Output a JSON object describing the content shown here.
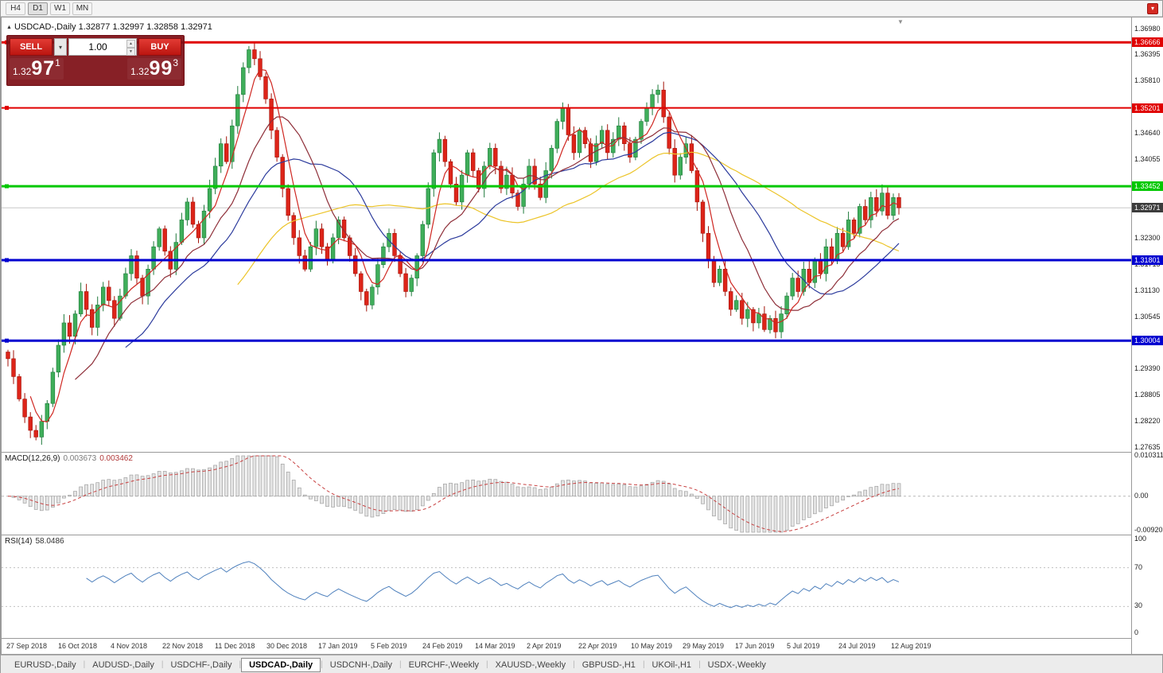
{
  "toolbar": {
    "timeframes": [
      "H4",
      "D1",
      "W1",
      "MN"
    ],
    "active_timeframe": "D1"
  },
  "chart": {
    "symbol": "USDCAD-,Daily",
    "ohlc_text": "1.32877 1.32997 1.32858 1.32971"
  },
  "trade_widget": {
    "sell_label": "SELL",
    "buy_label": "BUY",
    "volume": "1.00",
    "sell_price": {
      "prefix": "1.32",
      "big": "97",
      "sup": "1"
    },
    "buy_price": {
      "prefix": "1.32",
      "big": "99",
      "sup": "3"
    }
  },
  "tabs": {
    "items": [
      "EURUSD-,Daily",
      "AUDUSD-,Daily",
      "USDCHF-,Daily",
      "USDCAD-,Daily",
      "USDCNH-,Daily",
      "EURCHF-,Weekly",
      "XAUUSD-,Weekly",
      "GBPUSD-,H1",
      "UKOil-,H1",
      "USDX-,Weekly"
    ],
    "active_index": 3
  },
  "chart_data": {
    "type": "candlestick",
    "title": "USDCAD-,Daily",
    "price_range": [
      1.2752,
      1.3722
    ],
    "current_price": "1.32971",
    "y_ticks": [
      "1.36980",
      "1.36395",
      "1.35810",
      "1.34640",
      "1.34055",
      "1.32300",
      "1.31715",
      "1.31130",
      "1.30545",
      "1.29390",
      "1.28805",
      "1.28220",
      "1.27635"
    ],
    "hlines": [
      {
        "value": 1.36666,
        "label": "1.36666",
        "color": "#e00000",
        "width": 3
      },
      {
        "value": 1.35201,
        "label": "1.35201",
        "color": "#e00000",
        "width": 2
      },
      {
        "value": 1.33452,
        "label": "1.33452",
        "color": "#00c800",
        "width": 3
      },
      {
        "value": 1.31801,
        "label": "1.31801",
        "color": "#0000d0",
        "width": 3
      },
      {
        "value": 1.30004,
        "label": "1.30004",
        "color": "#0000d0",
        "width": 3
      }
    ],
    "x_labels": [
      "27 Sep 2018",
      "16 Oct 2018",
      "4 Nov 2018",
      "22 Nov 2018",
      "11 Dec 2018",
      "30 Dec 2018",
      "17 Jan 2019",
      "5 Feb 2019",
      "24 Feb 2019",
      "14 Mar 2019",
      "2 Apr 2019",
      "22 Apr 2019",
      "10 May 2019",
      "29 May 2019",
      "17 Jun 2019",
      "5 Jul 2019",
      "24 Jul 2019",
      "12 Aug 2019"
    ],
    "closes": [
      1.296,
      1.292,
      1.287,
      1.283,
      1.28,
      1.2785,
      1.282,
      1.286,
      1.293,
      1.299,
      1.304,
      1.301,
      1.306,
      1.311,
      1.307,
      1.303,
      1.308,
      1.312,
      1.309,
      1.305,
      1.31,
      1.315,
      1.319,
      1.314,
      1.31,
      1.316,
      1.321,
      1.325,
      1.32,
      1.316,
      1.322,
      1.327,
      1.331,
      1.326,
      1.323,
      1.329,
      1.334,
      1.339,
      1.344,
      1.34,
      1.348,
      1.355,
      1.361,
      1.365,
      1.363,
      1.359,
      1.354,
      1.347,
      1.341,
      1.334,
      1.328,
      1.323,
      1.319,
      1.316,
      1.321,
      1.325,
      1.321,
      1.318,
      1.323,
      1.327,
      1.323,
      1.319,
      1.315,
      1.311,
      1.308,
      1.312,
      1.317,
      1.321,
      1.324,
      1.319,
      1.315,
      1.311,
      1.314,
      1.319,
      1.326,
      1.334,
      1.342,
      1.345,
      1.34,
      1.335,
      1.331,
      1.337,
      1.342,
      1.338,
      1.334,
      1.339,
      1.343,
      1.339,
      1.334,
      1.337,
      1.333,
      1.33,
      1.335,
      1.339,
      1.335,
      1.332,
      1.338,
      1.343,
      1.349,
      1.352,
      1.346,
      1.342,
      1.347,
      1.344,
      1.34,
      1.344,
      1.347,
      1.342,
      1.345,
      1.348,
      1.344,
      1.341,
      1.345,
      1.349,
      1.352,
      1.355,
      1.356,
      1.35,
      1.343,
      1.337,
      1.341,
      1.344,
      1.338,
      1.331,
      1.324,
      1.318,
      1.313,
      1.316,
      1.311,
      1.307,
      1.309,
      1.305,
      1.307,
      1.304,
      1.306,
      1.3025,
      1.305,
      1.302,
      1.306,
      1.31,
      1.314,
      1.311,
      1.316,
      1.313,
      1.318,
      1.315,
      1.321,
      1.318,
      1.324,
      1.321,
      1.327,
      1.324,
      1.33,
      1.327,
      1.332,
      1.329,
      1.333,
      1.328,
      1.332,
      1.3297
    ],
    "up_color": "#3fae5a",
    "up_stroke": "#1e7a3b",
    "down_color": "#dd2419",
    "down_stroke": "#a31208",
    "moving_averages": [
      {
        "period": 42,
        "color": "#ecc428"
      },
      {
        "period": 22,
        "color": "#2b3a9c"
      },
      {
        "period": 13,
        "color": "#8e2e38"
      },
      {
        "period": 5,
        "color": "#cf2721"
      }
    ],
    "macd": {
      "name": "MACD(12,26,9)",
      "value": "0.003673",
      "signal": "0.003462",
      "axis": [
        "0.010311",
        "0.00",
        "-0.00920"
      ],
      "scale_max": 0.010311,
      "scale_min": -0.0092,
      "histogram_fill": "#e4e4e4",
      "histogram_stroke": "#a0a0a0",
      "signal_color": "#c84040"
    },
    "rsi": {
      "name": "RSI(14)",
      "value": "58.0486",
      "axis": [
        "100",
        "70",
        "30",
        "0"
      ],
      "levels": [
        70,
        30
      ],
      "line_color": "#4f81bd"
    }
  }
}
